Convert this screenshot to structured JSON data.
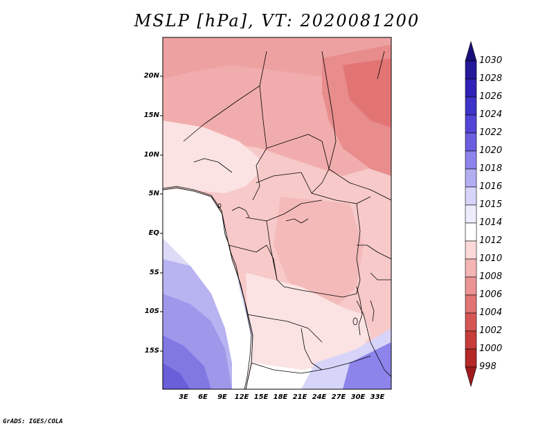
{
  "title": "MSLP [hPa], VT: 2020081200",
  "credit": "GrADS: IGES/COLA",
  "lat_labels": [
    "20N",
    "15N",
    "10N",
    "5N",
    "EQ",
    "5S",
    "10S",
    "15S"
  ],
  "lon_labels": [
    "3E",
    "6E",
    "9E",
    "12E",
    "15E",
    "18E",
    "21E",
    "24E",
    "27E",
    "30E",
    "33E"
  ],
  "colorbar": {
    "labels": [
      "1030",
      "1028",
      "1026",
      "1024",
      "1022",
      "1020",
      "1018",
      "1016",
      "1015",
      "1014",
      "1012",
      "1010",
      "1008",
      "1006",
      "1004",
      "1002",
      "1000",
      "998"
    ],
    "colors": [
      "#1a0f7a",
      "#251a9a",
      "#3022b6",
      "#3e33c8",
      "#5245d6",
      "#6b5fe0",
      "#8c84ea",
      "#b3aef2",
      "#d6d4f8",
      "#ececfc",
      "#ffffff",
      "#fbd9d9",
      "#f4b5b5",
      "#ec9494",
      "#e27474",
      "#d65555",
      "#c83c3c",
      "#b52828",
      "#9e1a1a"
    ]
  },
  "regions": {
    "ocean_west": "#dcdaf7",
    "ocean_south": "#9f98ea",
    "ocean_deep": "#6a5fd8",
    "land_north": "#eda1a1",
    "land_ne": "#e57f7f",
    "land_central": "#f7c9c9",
    "land_light": "#fce3e3",
    "land_south": "#ffffff"
  }
}
